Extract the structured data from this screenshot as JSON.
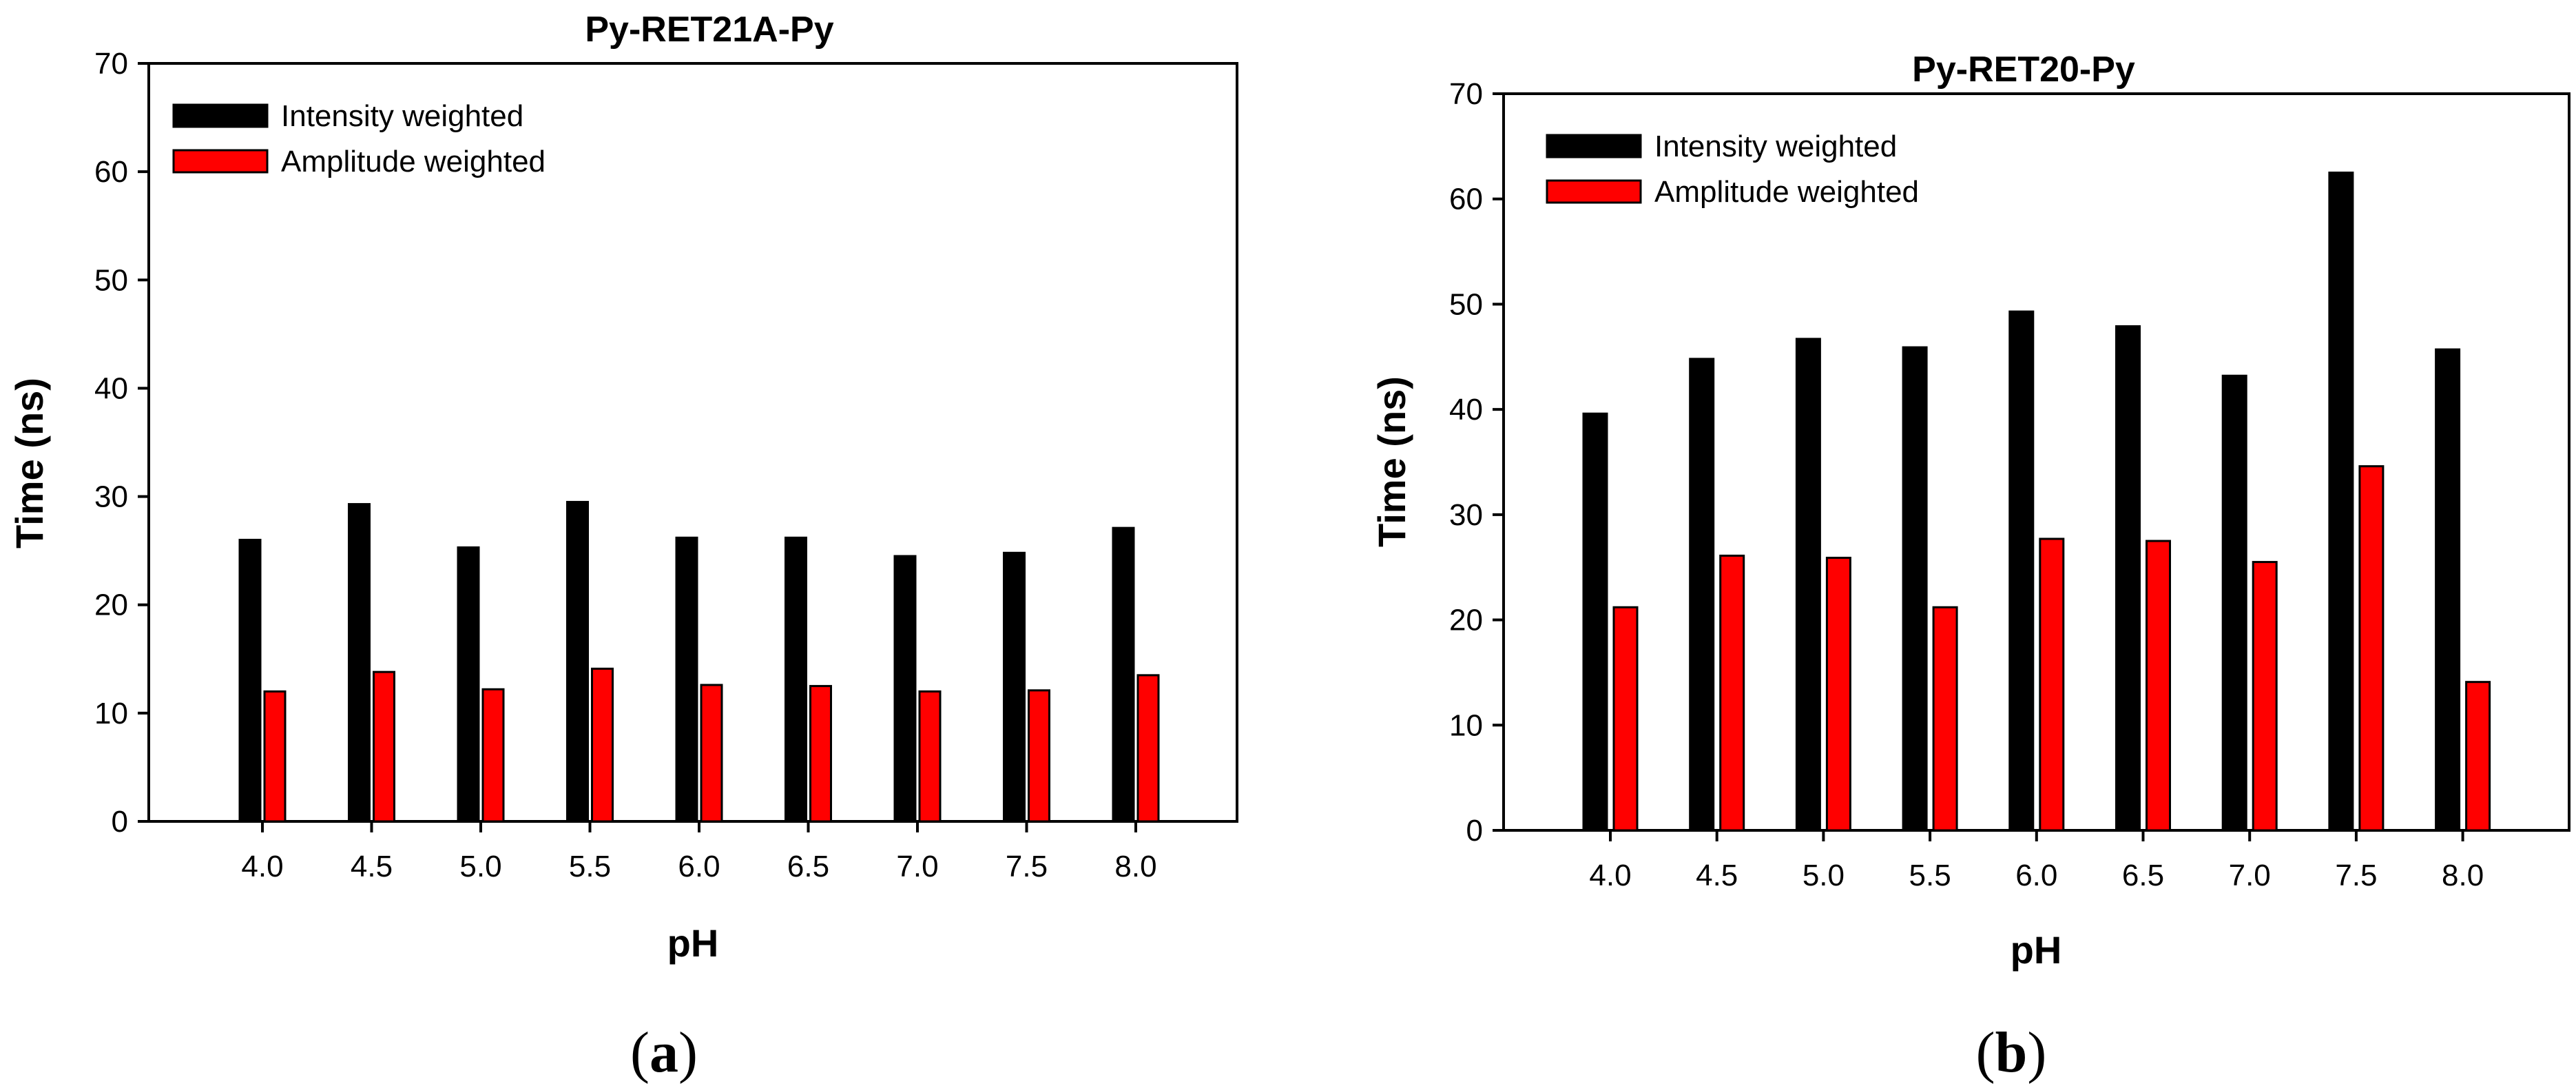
{
  "chart_data": [
    {
      "type": "bar",
      "title": "Py-RET21A-Py",
      "xlabel": "pH",
      "ylabel": "Time (ns)",
      "ylim": [
        0,
        70
      ],
      "yticks": [
        0,
        10,
        20,
        30,
        40,
        50,
        60,
        70
      ],
      "categories": [
        "4.0",
        "4.5",
        "5.0",
        "5.5",
        "6.0",
        "6.5",
        "7.0",
        "7.5",
        "8.0"
      ],
      "series": [
        {
          "name": "Intensity weighted",
          "color": "#000000",
          "values": [
            26,
            29.3,
            25.3,
            29.5,
            26.2,
            26.2,
            24.5,
            24.8,
            27.1
          ]
        },
        {
          "name": "Amplitude weighted",
          "color": "#ff0000",
          "values": [
            12,
            13.8,
            12.2,
            14.1,
            12.6,
            12.5,
            12,
            12.1,
            13.5
          ]
        }
      ],
      "legend": "top-left",
      "grid": false,
      "panel_label": {
        "open": "(",
        "letter": "a",
        "close": ")"
      }
    },
    {
      "type": "bar",
      "title": "Py-RET20-Py",
      "xlabel": "pH",
      "ylabel": "Time (ns)",
      "ylim": [
        0,
        70
      ],
      "yticks": [
        0,
        10,
        20,
        30,
        40,
        50,
        60,
        70
      ],
      "categories": [
        "4.0",
        "4.5",
        "5.0",
        "5.5",
        "6.0",
        "6.5",
        "7.0",
        "7.5",
        "8.0"
      ],
      "series": [
        {
          "name": "Intensity weighted",
          "color": "#000000",
          "values": [
            39.6,
            44.8,
            46.7,
            45.9,
            49.3,
            47.9,
            43.2,
            62.5,
            45.7
          ]
        },
        {
          "name": "Amplitude weighted",
          "color": "#ff0000",
          "values": [
            21.2,
            26.1,
            25.9,
            21.2,
            27.7,
            27.5,
            25.5,
            34.6,
            14.1
          ]
        }
      ],
      "legend": "top-left",
      "grid": false,
      "panel_label": {
        "open": "(",
        "letter": "b",
        "close": ")"
      }
    }
  ]
}
